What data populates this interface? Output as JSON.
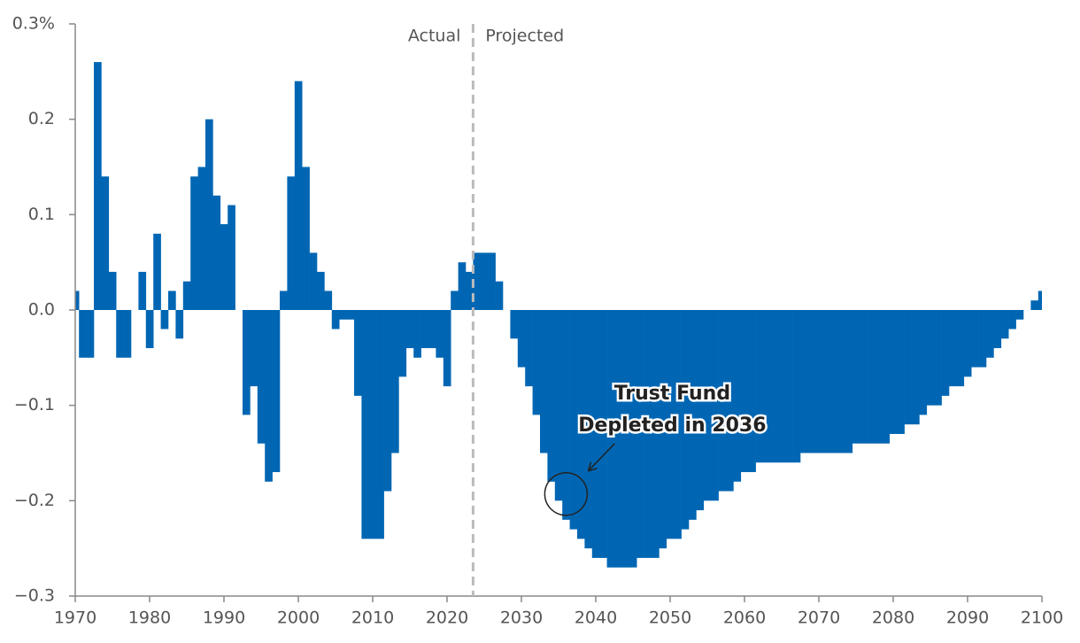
{
  "chart_data": {
    "type": "bar",
    "x": [
      1970,
      1971,
      1972,
      1973,
      1974,
      1975,
      1976,
      1977,
      1978,
      1979,
      1980,
      1981,
      1982,
      1983,
      1984,
      1985,
      1986,
      1987,
      1988,
      1989,
      1990,
      1991,
      1992,
      1993,
      1994,
      1995,
      1996,
      1997,
      1998,
      1999,
      2000,
      2001,
      2002,
      2003,
      2004,
      2005,
      2006,
      2007,
      2008,
      2009,
      2010,
      2011,
      2012,
      2013,
      2014,
      2015,
      2016,
      2017,
      2018,
      2019,
      2020,
      2021,
      2022,
      2023,
      2024,
      2025,
      2026,
      2027,
      2028,
      2029,
      2030,
      2031,
      2032,
      2033,
      2034,
      2035,
      2036,
      2037,
      2038,
      2039,
      2040,
      2041,
      2042,
      2043,
      2044,
      2045,
      2046,
      2047,
      2048,
      2049,
      2050,
      2051,
      2052,
      2053,
      2054,
      2055,
      2056,
      2057,
      2058,
      2059,
      2060,
      2061,
      2062,
      2063,
      2064,
      2065,
      2066,
      2067,
      2068,
      2069,
      2070,
      2071,
      2072,
      2073,
      2074,
      2075,
      2076,
      2077,
      2078,
      2079,
      2080,
      2081,
      2082,
      2083,
      2084,
      2085,
      2086,
      2087,
      2088,
      2089,
      2090,
      2091,
      2092,
      2093,
      2094,
      2095,
      2096,
      2097,
      2098,
      2099,
      2100
    ],
    "values": [
      0.02,
      -0.05,
      -0.05,
      0.26,
      0.14,
      0.04,
      -0.05,
      -0.05,
      0,
      0.04,
      -0.04,
      0.08,
      -0.02,
      0.02,
      -0.03,
      0.03,
      0.14,
      0.15,
      0.2,
      0.12,
      0.09,
      0.11,
      0,
      -0.11,
      -0.08,
      -0.14,
      -0.18,
      -0.17,
      0.02,
      0.14,
      0.24,
      0.15,
      0.06,
      0.04,
      0.02,
      -0.02,
      -0.01,
      -0.01,
      -0.09,
      -0.24,
      -0.24,
      -0.24,
      -0.19,
      -0.15,
      -0.07,
      -0.04,
      -0.05,
      -0.04,
      -0.04,
      -0.05,
      -0.08,
      0.02,
      0.05,
      0.04,
      0.06,
      0.06,
      0.06,
      0.03,
      0,
      -0.03,
      -0.06,
      -0.08,
      -0.11,
      -0.15,
      -0.18,
      -0.2,
      -0.22,
      -0.23,
      -0.24,
      -0.25,
      -0.26,
      -0.26,
      -0.27,
      -0.27,
      -0.27,
      -0.27,
      -0.26,
      -0.26,
      -0.26,
      -0.25,
      -0.24,
      -0.24,
      -0.23,
      -0.22,
      -0.21,
      -0.2,
      -0.2,
      -0.19,
      -0.19,
      -0.18,
      -0.17,
      -0.17,
      -0.16,
      -0.16,
      -0.16,
      -0.16,
      -0.16,
      -0.16,
      -0.15,
      -0.15,
      -0.15,
      -0.15,
      -0.15,
      -0.15,
      -0.15,
      -0.14,
      -0.14,
      -0.14,
      -0.14,
      -0.14,
      -0.13,
      -0.13,
      -0.12,
      -0.12,
      -0.11,
      -0.1,
      -0.1,
      -0.09,
      -0.08,
      -0.08,
      -0.07,
      -0.06,
      -0.06,
      -0.05,
      -0.04,
      -0.03,
      -0.02,
      -0.01,
      0,
      0.01,
      0.02
    ],
    "color": "#0066b3",
    "xlim": [
      1970,
      2100
    ],
    "xticks": [
      1970,
      1980,
      1990,
      2000,
      2010,
      2020,
      2030,
      2040,
      2050,
      2060,
      2070,
      2080,
      2090,
      2100
    ],
    "ylim": [
      -0.3,
      0.3
    ],
    "yticks": [
      {
        "value": 0.3,
        "label": "0.3%"
      },
      0.2,
      0.1,
      {
        "value": 0,
        "label": "0.0"
      },
      {
        "value": -0.1,
        "label": "−0.1"
      },
      {
        "value": -0.2,
        "label": "−0.2"
      },
      {
        "value": -0.3,
        "label": "−0.3"
      }
    ],
    "divider": {
      "x": 2023.5,
      "left_label": "Actual",
      "right_label": "Projected"
    },
    "annotation": {
      "text": [
        "Trust Fund",
        "Depleted in 2036"
      ],
      "x": 2036,
      "y": -0.193
    }
  }
}
